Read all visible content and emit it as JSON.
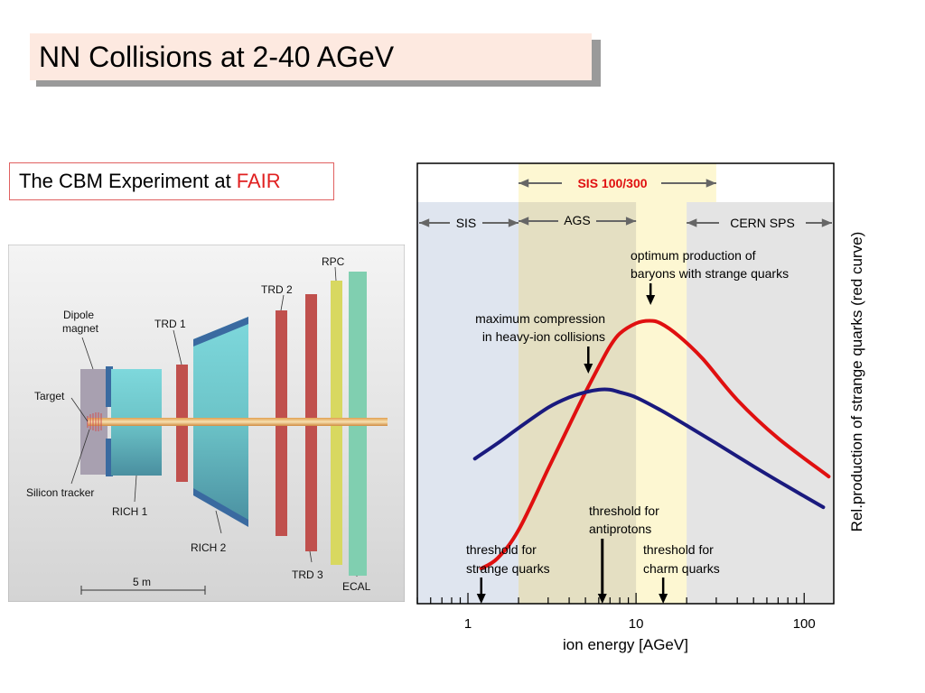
{
  "slide": {
    "title": "NN Collisions at 2-40 AGeV",
    "subtitle_prefix": "The CBM Experiment at",
    "subtitle_highlight": "FAIR",
    "highlight_color": "#e02020"
  },
  "detector": {
    "labels": {
      "dipole_line1": "Dipole",
      "dipole_line2": "magnet",
      "target": "Target",
      "silicon": "Silicon tracker",
      "rich1": "RICH 1",
      "trd1": "TRD 1",
      "rich2": "RICH 2",
      "trd2": "TRD 2",
      "trd3": "TRD 3",
      "rpc": "RPC",
      "ecal": "ECAL",
      "scale": "5 m"
    }
  },
  "chart_data": {
    "type": "line",
    "xscale": "log",
    "xlim": [
      0.5,
      150
    ],
    "xlabel": "ion energy [AGeV]",
    "ylabel": "Rel.production of strange quarks (red curve)",
    "xticks": [
      1,
      10,
      100
    ],
    "xtick_labels": [
      "1",
      "10",
      "100"
    ],
    "grid": false,
    "regions": [
      {
        "name": "SIS",
        "range": [
          0.5,
          2
        ],
        "color": "#dfe5ef"
      },
      {
        "name": "AGS",
        "range": [
          2,
          10
        ],
        "color": "#e4dfc2"
      },
      {
        "name": "SIS 100/300",
        "range": [
          2,
          30
        ],
        "color": "#fdf7d2"
      },
      {
        "name": "CERN SPS",
        "range": [
          20,
          150
        ],
        "color": "#e4e4e4"
      }
    ],
    "series": [
      {
        "color": "#e01010",
        "x": [
          1.2,
          1.5,
          2,
          3,
          4,
          5,
          6,
          7,
          8,
          10,
          12,
          14,
          18,
          25,
          40,
          70,
          140
        ],
        "y": [
          0.0,
          0.04,
          0.15,
          0.39,
          0.56,
          0.69,
          0.79,
          0.87,
          0.92,
          0.96,
          0.97,
          0.96,
          0.91,
          0.82,
          0.66,
          0.51,
          0.36
        ]
      },
      {
        "color": "#1a1a7e",
        "x": [
          1.1,
          1.5,
          2,
          3,
          4,
          5,
          6,
          7,
          8,
          10,
          14,
          20,
          30,
          50,
          80,
          130
        ],
        "y": [
          0.43,
          0.49,
          0.55,
          0.63,
          0.67,
          0.69,
          0.7,
          0.7,
          0.69,
          0.67,
          0.62,
          0.56,
          0.49,
          0.4,
          0.32,
          0.24
        ]
      }
    ],
    "annotations": {
      "sis100": "SIS 100/300",
      "sis": "SIS",
      "ags": "AGS",
      "sps": "CERN SPS",
      "optimum_line1": "optimum production of",
      "optimum_line2": "baryons with strange quarks",
      "maxcomp_line1": "maximum compression",
      "maxcomp_line2": "in heavy-ion collisions",
      "thr_anti_line1": "threshold for",
      "thr_anti_line2": "antiprotons",
      "thr_strange_line1": "threshold for",
      "thr_strange_line2": "strange quarks",
      "thr_charm_line1": "threshold for",
      "thr_charm_line2": "charm quarks"
    },
    "markers": {
      "optimum": 12.2,
      "max_compression": 5.2,
      "threshold_strange": 1.2,
      "threshold_antiprotons": 6.3,
      "threshold_charm": 14.5
    }
  }
}
